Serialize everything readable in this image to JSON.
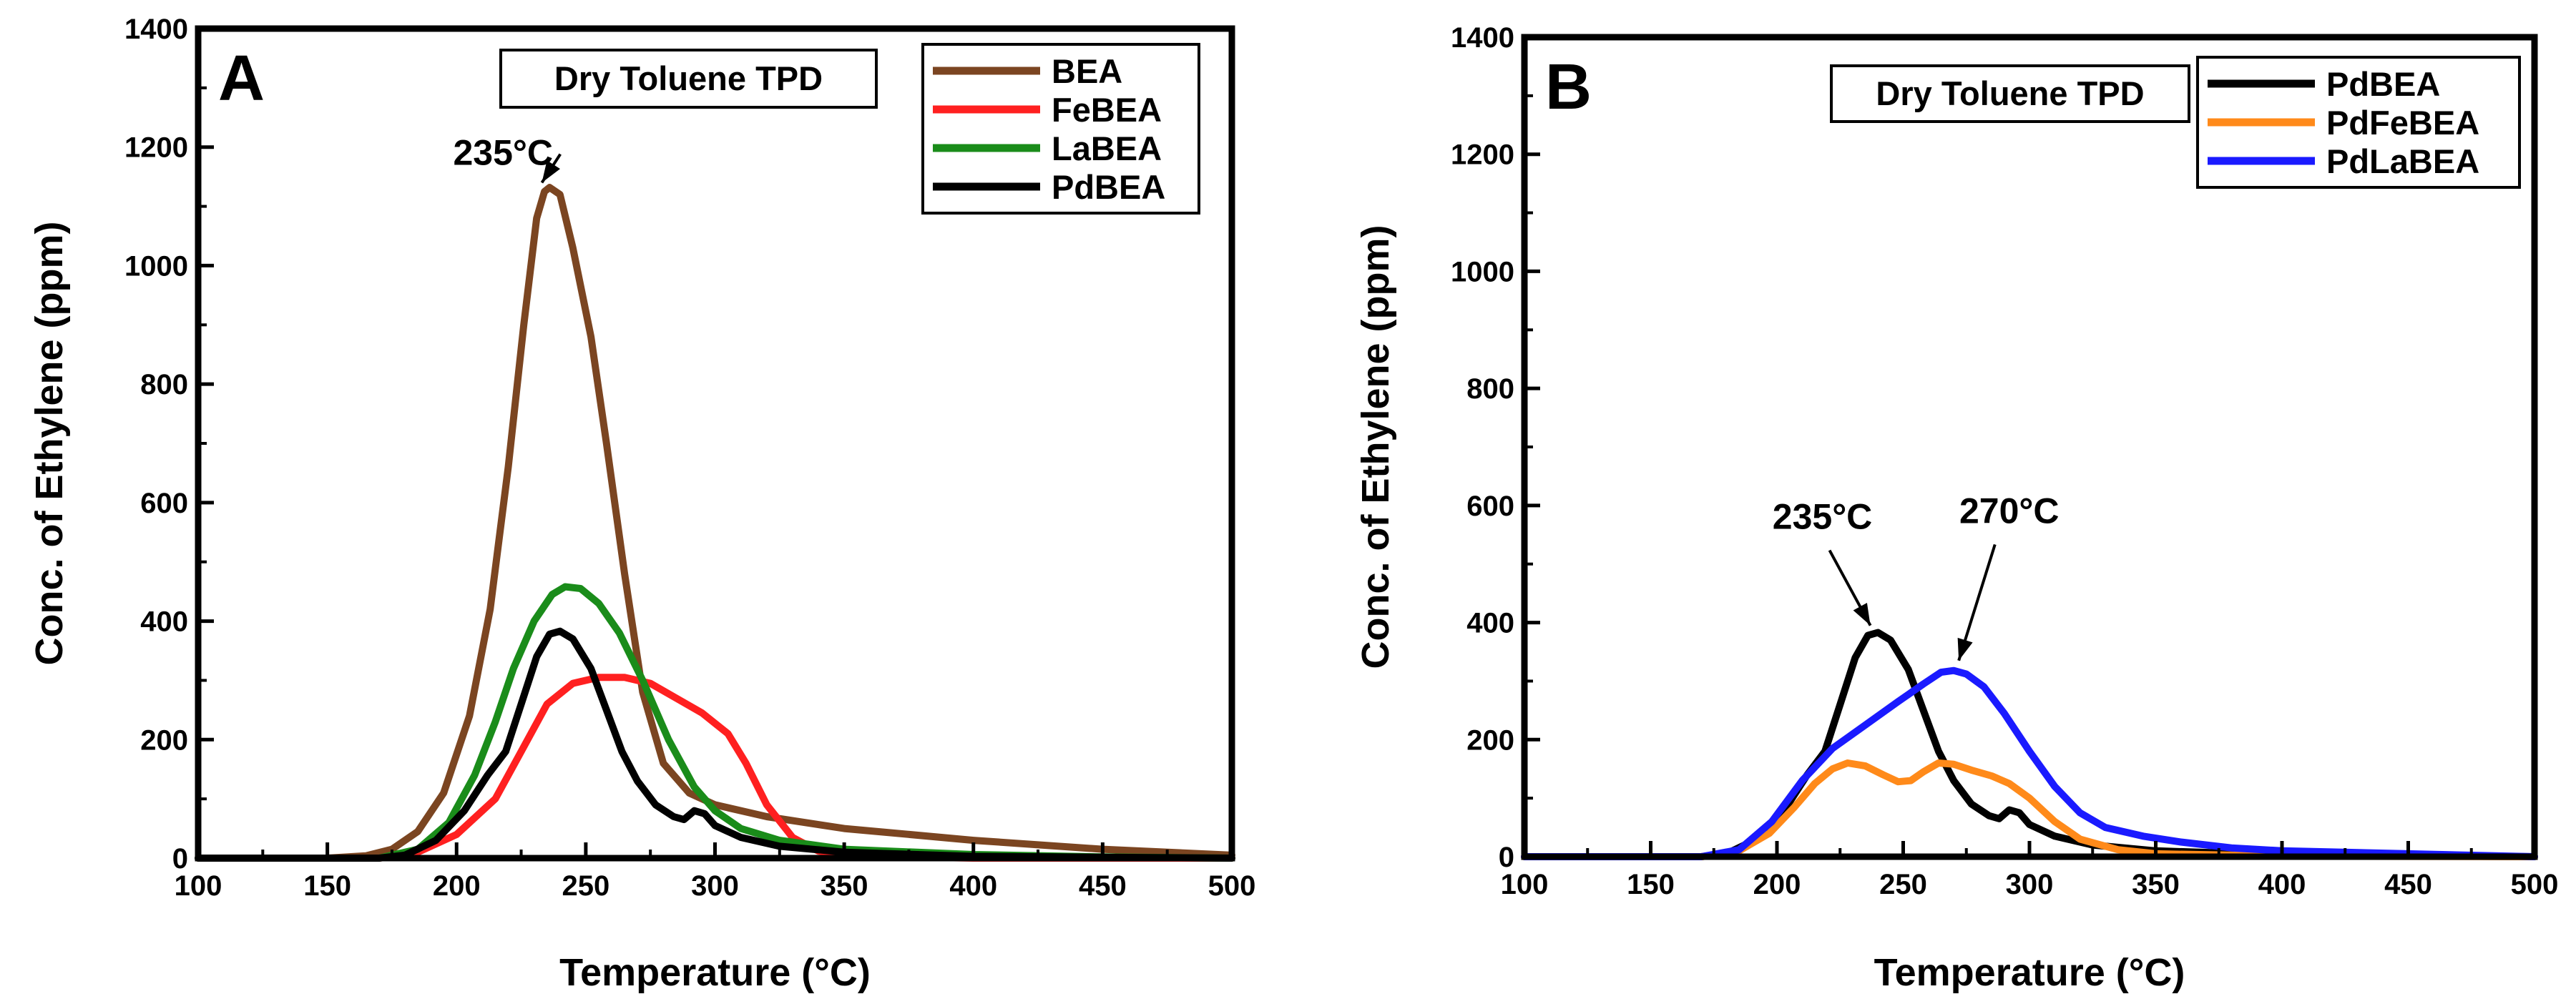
{
  "chart_data": [
    {
      "type": "line",
      "panel_label": "A",
      "title": "Dry Toluene TPD",
      "xlabel": "Temperature (°C)",
      "ylabel": "Conc. of Ethylene (ppm)",
      "xlim": [
        100,
        500
      ],
      "ylim": [
        0,
        1400
      ],
      "xticks": [
        100,
        150,
        200,
        250,
        300,
        350,
        400,
        450,
        500
      ],
      "yticks": [
        0,
        200,
        400,
        600,
        800,
        1000,
        1200,
        1400
      ],
      "legend_position": "top-right",
      "series": [
        {
          "name": "BEA",
          "color": "#7b4521",
          "points": [
            [
              100,
              0
            ],
            [
              150,
              0
            ],
            [
              165,
              4
            ],
            [
              175,
              15
            ],
            [
              185,
              45
            ],
            [
              195,
              110
            ],
            [
              205,
              240
            ],
            [
              213,
              420
            ],
            [
              220,
              660
            ],
            [
              226,
              900
            ],
            [
              231,
              1080
            ],
            [
              234,
              1125
            ],
            [
              236,
              1132
            ],
            [
              240,
              1120
            ],
            [
              245,
              1030
            ],
            [
              252,
              880
            ],
            [
              258,
              700
            ],
            [
              265,
              480
            ],
            [
              272,
              280
            ],
            [
              280,
              160
            ],
            [
              290,
              110
            ],
            [
              300,
              90
            ],
            [
              320,
              70
            ],
            [
              350,
              50
            ],
            [
              400,
              30
            ],
            [
              450,
              15
            ],
            [
              500,
              5
            ]
          ]
        },
        {
          "name": "FeBEA",
          "color": "#ff2020",
          "points": [
            [
              100,
              0
            ],
            [
              170,
              0
            ],
            [
              185,
              10
            ],
            [
              200,
              40
            ],
            [
              215,
              100
            ],
            [
              225,
              180
            ],
            [
              235,
              260
            ],
            [
              245,
              295
            ],
            [
              255,
              305
            ],
            [
              265,
              305
            ],
            [
              275,
              295
            ],
            [
              285,
              270
            ],
            [
              295,
              245
            ],
            [
              305,
              210
            ],
            [
              312,
              160
            ],
            [
              320,
              90
            ],
            [
              330,
              35
            ],
            [
              340,
              12
            ],
            [
              360,
              3
            ],
            [
              400,
              0
            ],
            [
              500,
              0
            ]
          ]
        },
        {
          "name": "LaBEA",
          "color": "#1a8c1a",
          "points": [
            [
              100,
              0
            ],
            [
              170,
              0
            ],
            [
              185,
              15
            ],
            [
              197,
              60
            ],
            [
              207,
              140
            ],
            [
              215,
              230
            ],
            [
              222,
              320
            ],
            [
              230,
              400
            ],
            [
              237,
              445
            ],
            [
              242,
              458
            ],
            [
              248,
              455
            ],
            [
              255,
              430
            ],
            [
              263,
              380
            ],
            [
              272,
              300
            ],
            [
              282,
              200
            ],
            [
              292,
              120
            ],
            [
              300,
              80
            ],
            [
              310,
              50
            ],
            [
              325,
              30
            ],
            [
              350,
              15
            ],
            [
              400,
              6
            ],
            [
              450,
              2
            ],
            [
              500,
              0
            ]
          ]
        },
        {
          "name": "PdBEA",
          "color": "#000000",
          "points": [
            [
              100,
              0
            ],
            [
              170,
              0
            ],
            [
              180,
              5
            ],
            [
              192,
              30
            ],
            [
              203,
              80
            ],
            [
              212,
              140
            ],
            [
              219,
              180
            ],
            [
              225,
              260
            ],
            [
              231,
              340
            ],
            [
              236,
              378
            ],
            [
              240,
              383
            ],
            [
              245,
              370
            ],
            [
              252,
              320
            ],
            [
              258,
              250
            ],
            [
              264,
              180
            ],
            [
              270,
              130
            ],
            [
              277,
              90
            ],
            [
              284,
              70
            ],
            [
              288,
              65
            ],
            [
              292,
              80
            ],
            [
              296,
              75
            ],
            [
              300,
              55
            ],
            [
              310,
              35
            ],
            [
              325,
              20
            ],
            [
              350,
              10
            ],
            [
              400,
              3
            ],
            [
              500,
              0
            ]
          ]
        }
      ],
      "annotations": [
        {
          "text": "235°C",
          "label_x": 218,
          "label_y": 1170,
          "arrow_to_x": 233,
          "arrow_to_y": 1140
        }
      ]
    },
    {
      "type": "line",
      "panel_label": "B",
      "title": "Dry Toluene TPD",
      "xlabel": "Temperature (°C)",
      "ylabel": "Conc. of Ethylene (ppm)",
      "xlim": [
        100,
        500
      ],
      "ylim": [
        0,
        1400
      ],
      "xticks": [
        100,
        150,
        200,
        250,
        300,
        350,
        400,
        450,
        500
      ],
      "yticks": [
        0,
        200,
        400,
        600,
        800,
        1000,
        1200,
        1400
      ],
      "legend_position": "top-right",
      "series": [
        {
          "name": "PdBEA",
          "color": "#000000",
          "points": [
            [
              100,
              0
            ],
            [
              170,
              0
            ],
            [
              180,
              5
            ],
            [
              192,
              30
            ],
            [
              203,
              80
            ],
            [
              212,
              140
            ],
            [
              219,
              180
            ],
            [
              225,
              260
            ],
            [
              231,
              340
            ],
            [
              236,
              378
            ],
            [
              240,
              383
            ],
            [
              245,
              370
            ],
            [
              252,
              320
            ],
            [
              258,
              250
            ],
            [
              264,
              180
            ],
            [
              270,
              130
            ],
            [
              277,
              90
            ],
            [
              284,
              70
            ],
            [
              288,
              65
            ],
            [
              292,
              80
            ],
            [
              296,
              75
            ],
            [
              300,
              55
            ],
            [
              310,
              35
            ],
            [
              325,
              20
            ],
            [
              350,
              10
            ],
            [
              400,
              3
            ],
            [
              500,
              0
            ]
          ]
        },
        {
          "name": "PdFeBEA",
          "color": "#ff8a1a",
          "points": [
            [
              100,
              0
            ],
            [
              170,
              0
            ],
            [
              185,
              10
            ],
            [
              197,
              40
            ],
            [
              207,
              85
            ],
            [
              215,
              125
            ],
            [
              222,
              150
            ],
            [
              228,
              160
            ],
            [
              235,
              155
            ],
            [
              242,
              140
            ],
            [
              248,
              128
            ],
            [
              253,
              130
            ],
            [
              258,
              145
            ],
            [
              264,
              160
            ],
            [
              270,
              158
            ],
            [
              277,
              148
            ],
            [
              285,
              138
            ],
            [
              292,
              125
            ],
            [
              300,
              100
            ],
            [
              310,
              60
            ],
            [
              320,
              30
            ],
            [
              335,
              12
            ],
            [
              350,
              5
            ],
            [
              400,
              1
            ],
            [
              500,
              0
            ]
          ]
        },
        {
          "name": "PdLaBEA",
          "color": "#1a1aff",
          "points": [
            [
              100,
              0
            ],
            [
              170,
              0
            ],
            [
              185,
              12
            ],
            [
              198,
              60
            ],
            [
              210,
              130
            ],
            [
              222,
              185
            ],
            [
              235,
              225
            ],
            [
              248,
              265
            ],
            [
              258,
              295
            ],
            [
              265,
              315
            ],
            [
              270,
              318
            ],
            [
              275,
              312
            ],
            [
              282,
              290
            ],
            [
              290,
              245
            ],
            [
              300,
              180
            ],
            [
              310,
              120
            ],
            [
              320,
              75
            ],
            [
              330,
              50
            ],
            [
              345,
              35
            ],
            [
              360,
              25
            ],
            [
              380,
              15
            ],
            [
              400,
              10
            ],
            [
              450,
              5
            ],
            [
              500,
              0
            ]
          ]
        }
      ],
      "annotations": [
        {
          "text": "235°C",
          "label_x": 218,
          "label_y": 560,
          "arrow_to_x": 237,
          "arrow_to_y": 395
        },
        {
          "text": "270°C",
          "label_x": 292,
          "label_y": 570,
          "arrow_to_x": 272,
          "arrow_to_y": 335
        }
      ]
    }
  ]
}
